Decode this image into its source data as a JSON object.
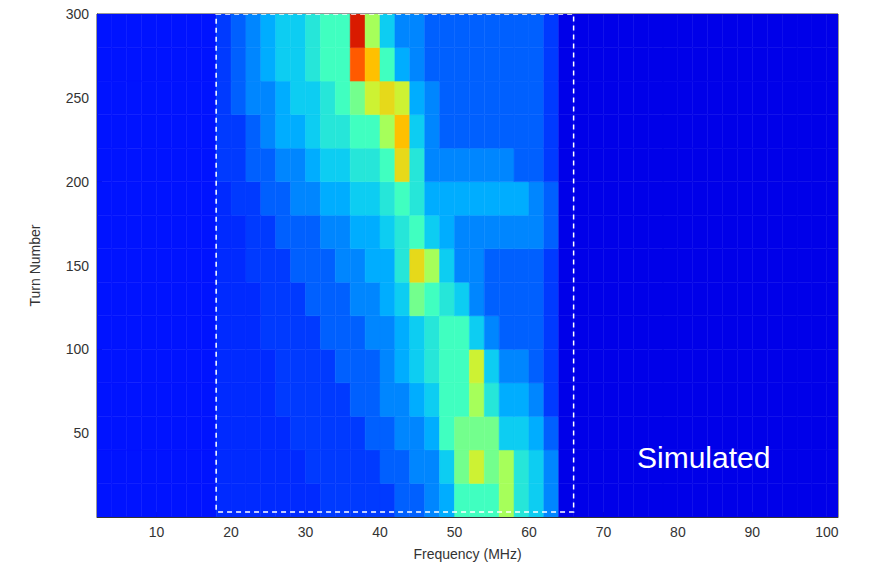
{
  "chart_data": {
    "type": "heatmap",
    "x_label": "Frequency (MHz)",
    "y_label": "Turn Number",
    "xlim": [
      2,
      101.5
    ],
    "xticks": [
      10,
      20,
      30,
      40,
      50,
      60,
      70,
      80,
      90,
      100
    ],
    "ylim": [
      0,
      300
    ],
    "yticks": [
      50,
      100,
      150,
      200,
      250,
      300
    ],
    "zlim": [
      0,
      10
    ],
    "x": [
      3,
      5,
      7,
      9,
      11,
      13,
      15,
      17,
      19,
      21,
      23,
      25,
      27,
      29,
      31,
      33,
      35,
      37,
      39,
      41,
      43,
      45,
      47,
      49,
      51,
      53,
      55,
      57,
      59,
      61,
      63,
      65,
      67,
      69,
      71,
      73,
      75,
      77,
      79,
      81,
      83,
      85,
      87,
      89,
      91,
      93,
      95,
      97,
      99,
      101
    ],
    "y": [
      10,
      30,
      50,
      70,
      90,
      110,
      130,
      150,
      170,
      190,
      210,
      230,
      250,
      270,
      290
    ],
    "z": [
      [
        1.5,
        1.5,
        1.5,
        1.5,
        1.5,
        1.5,
        1.5,
        1.5,
        1.8,
        1.8,
        1.8,
        1.8,
        1.8,
        1.8,
        1.8,
        2,
        2,
        2,
        2,
        2,
        2.5,
        2.5,
        3,
        3.5,
        5,
        5,
        5,
        6,
        4.5,
        4,
        3,
        1,
        1,
        1,
        1,
        1,
        1,
        1,
        1,
        1,
        1,
        1,
        1,
        1,
        1,
        1,
        1,
        1,
        1,
        1
      ],
      [
        1.5,
        1.5,
        1.5,
        1.5,
        1.5,
        1.5,
        1.5,
        1.5,
        1.8,
        1.8,
        1.8,
        1.8,
        1.8,
        1.8,
        2,
        2,
        2,
        2,
        2,
        2.5,
        2.5,
        3,
        3,
        4,
        5.5,
        6.5,
        5.5,
        6,
        4.5,
        4,
        3,
        1,
        1,
        1,
        1,
        1,
        1,
        1,
        1,
        1,
        1,
        1,
        1,
        1,
        1,
        1,
        1,
        1,
        1,
        1
      ],
      [
        1.5,
        1.5,
        1.5,
        1.5,
        1.5,
        1.5,
        1.5,
        1.5,
        1.8,
        1.8,
        1.8,
        1.8,
        1.8,
        2,
        2,
        2,
        2,
        2,
        2.5,
        2.5,
        3,
        3,
        3.5,
        5,
        5.5,
        5.5,
        5.5,
        4,
        4,
        3.5,
        2.5,
        1,
        1,
        1,
        1,
        1,
        1,
        1,
        1,
        1,
        1,
        1,
        1,
        1,
        1,
        1,
        1,
        1,
        1,
        1
      ],
      [
        1.5,
        1.5,
        1.5,
        1.5,
        1.5,
        1.5,
        1.5,
        1.5,
        1.8,
        1.8,
        1.8,
        1.8,
        2,
        2,
        2,
        2,
        2,
        2.5,
        2.5,
        3,
        3,
        3.5,
        4,
        5,
        5,
        6,
        4.5,
        3.5,
        3.5,
        3,
        2,
        1,
        1,
        1,
        1,
        1,
        1,
        1,
        1,
        1,
        1,
        1,
        1,
        1,
        1,
        1,
        1,
        1,
        1,
        1
      ],
      [
        1.5,
        1.5,
        1.5,
        1.5,
        1.5,
        1.5,
        1.5,
        1.5,
        1.8,
        1.8,
        1.8,
        1.8,
        2,
        2,
        2,
        2,
        2.5,
        2.5,
        2.5,
        3,
        3.5,
        4,
        4.5,
        5,
        5,
        6.5,
        4,
        3,
        3,
        2.5,
        2,
        1,
        1,
        1,
        1,
        1,
        1,
        1,
        1,
        1,
        1,
        1,
        1,
        1,
        1,
        1,
        1,
        1,
        1,
        1
      ],
      [
        1.5,
        1.5,
        1.5,
        1.5,
        1.5,
        1.5,
        1.5,
        1.5,
        1.8,
        1.8,
        1.8,
        2,
        2,
        2,
        2,
        2.5,
        2.5,
        2.5,
        3,
        3,
        3.5,
        4,
        4.5,
        5,
        5,
        4,
        3,
        2.5,
        2.5,
        2.5,
        2,
        1,
        1,
        1,
        1,
        1,
        1,
        1,
        1,
        1,
        1,
        1,
        1,
        1,
        1,
        1,
        1,
        1,
        1,
        1
      ],
      [
        1.5,
        1.5,
        1.5,
        1.5,
        1.5,
        1.5,
        1.5,
        1.5,
        1.8,
        1.8,
        1.8,
        2,
        2,
        2,
        2.5,
        2.5,
        2.5,
        3,
        3,
        3.5,
        4,
        5.5,
        5,
        4.5,
        4,
        3,
        2.5,
        2.5,
        2.5,
        2.5,
        2,
        1,
        1,
        1,
        1,
        1,
        1,
        1,
        1,
        1,
        1,
        1,
        1,
        1,
        1,
        1,
        1,
        1,
        1,
        1
      ],
      [
        1.5,
        1.5,
        1.5,
        1.5,
        1.5,
        1.5,
        1.5,
        1.5,
        1.8,
        1.8,
        2,
        2,
        2,
        2.5,
        2.5,
        2.5,
        3,
        3,
        3.5,
        3.5,
        4.5,
        7,
        6,
        4,
        3,
        3,
        2.5,
        2.5,
        2.5,
        2.5,
        2,
        1,
        1,
        1,
        1,
        1,
        1,
        1,
        1,
        1,
        1,
        1,
        1,
        1,
        1,
        1,
        1,
        1,
        1,
        1
      ],
      [
        1.5,
        1.5,
        1.5,
        1.5,
        1.5,
        1.5,
        1.5,
        1.5,
        1.8,
        1.8,
        2,
        2,
        2.5,
        2.5,
        2.5,
        3,
        3,
        3.5,
        3.5,
        4,
        4.5,
        5,
        4,
        3.5,
        3,
        3,
        3,
        3,
        3,
        3,
        2.5,
        1,
        1,
        1,
        1,
        1,
        1,
        1,
        1,
        1,
        1,
        1,
        1,
        1,
        1,
        1,
        1,
        1,
        1,
        1
      ],
      [
        1.5,
        1.5,
        1.5,
        1.5,
        1.5,
        1.5,
        1.5,
        1.5,
        1.8,
        2,
        2,
        2.5,
        2.5,
        3,
        3,
        3.5,
        3.5,
        4,
        4,
        4.5,
        5,
        4.5,
        3.5,
        3.5,
        3.5,
        3.5,
        3.5,
        3.5,
        3.5,
        3,
        2.5,
        1,
        1,
        1,
        1,
        1,
        1,
        1,
        1,
        1,
        1,
        1,
        1,
        1,
        1,
        1,
        1,
        1,
        1,
        1
      ],
      [
        1.5,
        1.5,
        1.5,
        1.5,
        1.5,
        1.5,
        1.5,
        1.5,
        2,
        2,
        2.5,
        2.5,
        3,
        3,
        3.5,
        4,
        4,
        4.5,
        4.5,
        5,
        7,
        4.5,
        3,
        3,
        3,
        3,
        3,
        3,
        2.5,
        2.5,
        2,
        1,
        1,
        1,
        1,
        1,
        1,
        1,
        1,
        1,
        1,
        1,
        1,
        1,
        1,
        1,
        1,
        1,
        1,
        1
      ],
      [
        1.5,
        1.5,
        1.5,
        1.5,
        1.5,
        1.5,
        1.5,
        1.5,
        2,
        2,
        2.5,
        3,
        3.5,
        3.5,
        4,
        4.5,
        4.5,
        5,
        5,
        6,
        7.5,
        4,
        3,
        2.5,
        2.5,
        2.5,
        2.5,
        2.5,
        2.5,
        2.5,
        2,
        1,
        1,
        1,
        1,
        1,
        1,
        1,
        1,
        1,
        1,
        1,
        1,
        1,
        1,
        1,
        1,
        1,
        1,
        1
      ],
      [
        1.5,
        1.5,
        1.5,
        1.5,
        1.5,
        1.5,
        1.5,
        1.5,
        2,
        2.5,
        3,
        3,
        3.5,
        4,
        4,
        4.5,
        5,
        5.5,
        6.5,
        7,
        6.5,
        3.5,
        3,
        2.5,
        2.5,
        2.5,
        2.5,
        2.5,
        2.5,
        2.5,
        2,
        1,
        1,
        1,
        1,
        1,
        1,
        1,
        1,
        1,
        1,
        1,
        1,
        1,
        1,
        1,
        1,
        1,
        1,
        1
      ],
      [
        1.5,
        1.5,
        1.5,
        1.5,
        1.5,
        1.5,
        1.5,
        1.5,
        2,
        2.5,
        3,
        3.5,
        4,
        4,
        4.5,
        5,
        5,
        8.5,
        7.5,
        5,
        3.5,
        3,
        2.5,
        2.5,
        2.5,
        2.5,
        2.5,
        2.5,
        2.5,
        2.5,
        2,
        1,
        1,
        1,
        1,
        1,
        1,
        1,
        1,
        1,
        1,
        1,
        1,
        1,
        1,
        1,
        1,
        1,
        1,
        1
      ],
      [
        1.5,
        1.5,
        1.5,
        1.5,
        1.5,
        1.5,
        1.5,
        1.5,
        2,
        2.5,
        3,
        3.5,
        4,
        4,
        4.5,
        5,
        5,
        9.5,
        6,
        4,
        3,
        3,
        2.5,
        2.5,
        2.5,
        2.5,
        2.5,
        2.5,
        2.5,
        2.5,
        2,
        1,
        1,
        1,
        1,
        1,
        1,
        1,
        1,
        1,
        1,
        1,
        1,
        1,
        1,
        1,
        1,
        1,
        1,
        1
      ]
    ],
    "box": {
      "xlim": [
        18,
        66
      ],
      "ylim": [
        3,
        300
      ],
      "line_style": "dashed",
      "color": "#ffffff"
    },
    "annotations": [
      "Simulated"
    ]
  }
}
